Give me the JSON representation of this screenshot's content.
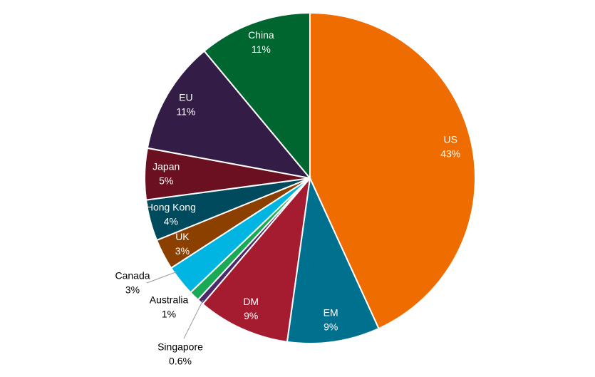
{
  "chart_data": {
    "type": "pie",
    "categories": [
      "US",
      "EM",
      "DM",
      "Singapore",
      "Australia",
      "Canada",
      "UK",
      "Hong Kong",
      "Japan",
      "EU",
      "China"
    ],
    "values": [
      43,
      9,
      9,
      0.6,
      1,
      3,
      3,
      4,
      5,
      11,
      11
    ],
    "value_labels": [
      "43%",
      "9%",
      "9%",
      "0.6%",
      "1%",
      "3%",
      "3%",
      "4%",
      "5%",
      "11%",
      "11%"
    ],
    "colors": [
      "#ef6c00",
      "#00708f",
      "#a51c30",
      "#4b2a6a",
      "#1aaa55",
      "#00b5e2",
      "#8b4000",
      "#004a5e",
      "#6a1020",
      "#331c45",
      "#00662f"
    ]
  }
}
